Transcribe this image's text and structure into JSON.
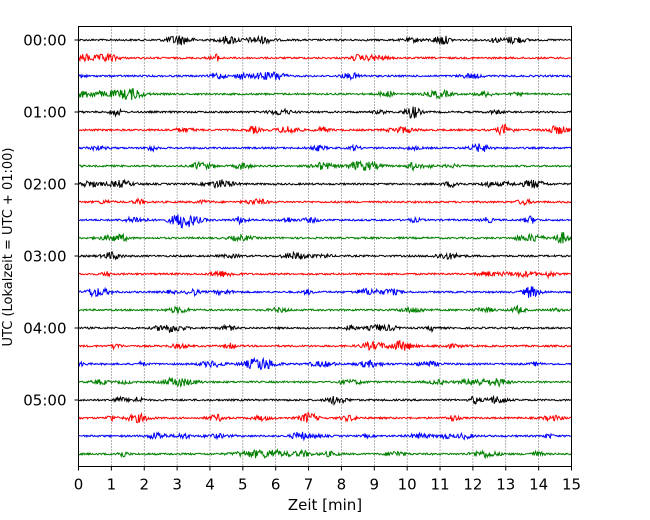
{
  "chart_data": {
    "type": "line",
    "xlabel": "Zeit  [min]",
    "ylabel": "UTC (Lokalzeit = UTC + 01:00)",
    "xlim": [
      0,
      15
    ],
    "x_ticks": [
      "0",
      "1",
      "2",
      "3",
      "4",
      "5",
      "6",
      "7",
      "8",
      "9",
      "10",
      "11",
      "12",
      "13",
      "14",
      "15"
    ],
    "y_ticks": [
      "00:00",
      "01:00",
      "02:00",
      "03:00",
      "04:00",
      "05:00"
    ],
    "grid": "x-dotted",
    "trace_count": 24,
    "trace_interval_min": 15,
    "trace_colors": [
      "#000000",
      "#ff0000",
      "#0000ff",
      "#008000"
    ]
  }
}
